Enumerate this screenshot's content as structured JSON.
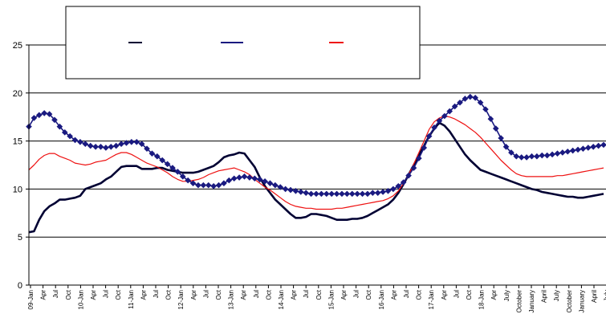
{
  "chart_data": {
    "type": "line",
    "ylim": [
      0,
      25
    ],
    "yticks": [
      0,
      5,
      10,
      15,
      20,
      25
    ],
    "grid": "horizontal",
    "legend_position": "top-center",
    "x_tick_labels": [
      "09-Jan",
      "Apr",
      "Jul",
      "Oct",
      "10-Jan",
      "Apr",
      "Jul",
      "Oct",
      "11-Jan",
      "Apr",
      "Jul",
      "Oct",
      "12-Jan",
      "Apr",
      "Jul",
      "Oct",
      "13-Jan",
      "Apr",
      "Jul",
      "Oct",
      "14-Jan",
      "Apr",
      "Jul",
      "Oct",
      "15-Jan",
      "Apr",
      "Jul",
      "Oct",
      "16-Jan",
      "Apr",
      "Jul",
      "Oct",
      "17-Jan",
      "Apr",
      "Jul",
      "Oct",
      "18-Jan",
      "Apr",
      "July",
      "October",
      "January",
      "April",
      "July",
      "October",
      "January",
      "April",
      "July"
    ],
    "series": [
      {
        "name": "",
        "color": "#000033",
        "width": 2.6,
        "marker": "none",
        "values": [
          5.5,
          5.6,
          6.8,
          7.7,
          8.2,
          8.5,
          8.9,
          8.9,
          9.0,
          9.1,
          9.3,
          10.0,
          10.2,
          10.4,
          10.6,
          11.0,
          11.3,
          11.8,
          12.3,
          12.4,
          12.4,
          12.4,
          12.1,
          12.1,
          12.1,
          12.2,
          12.2,
          12.0,
          11.9,
          11.8,
          11.7,
          11.7,
          11.7,
          11.8,
          12.0,
          12.2,
          12.4,
          12.8,
          13.3,
          13.5,
          13.6,
          13.8,
          13.7,
          13.0,
          12.3,
          11.2,
          10.3,
          9.6,
          8.9,
          8.4,
          7.9,
          7.4,
          7.0,
          7.0,
          7.1,
          7.4,
          7.4,
          7.3,
          7.2,
          7.0,
          6.8,
          6.8,
          6.8,
          6.9,
          6.9,
          7.0,
          7.2,
          7.5,
          7.8,
          8.1,
          8.4,
          8.9,
          9.6,
          10.5,
          11.5,
          12.5,
          13.5,
          14.5,
          15.5,
          16.3,
          16.9,
          16.6,
          16.0,
          15.2,
          14.4,
          13.6,
          13.0,
          12.5,
          12.0,
          11.8,
          11.6,
          11.4,
          11.2,
          11.0,
          10.8,
          10.6,
          10.4,
          10.2,
          10.0,
          9.9,
          9.7,
          9.6,
          9.5,
          9.4,
          9.3,
          9.2,
          9.2,
          9.1,
          9.1,
          9.2,
          9.3,
          9.4,
          9.5
        ]
      },
      {
        "name": "",
        "color": "#ee1111",
        "width": 1.2,
        "marker": "none",
        "values": [
          12.0,
          12.5,
          13.1,
          13.5,
          13.7,
          13.7,
          13.4,
          13.2,
          13.0,
          12.7,
          12.6,
          12.5,
          12.6,
          12.8,
          12.9,
          13.0,
          13.3,
          13.6,
          13.8,
          13.8,
          13.6,
          13.3,
          13.0,
          12.7,
          12.5,
          12.3,
          12.0,
          11.7,
          11.3,
          11.0,
          10.8,
          10.8,
          10.9,
          11.0,
          11.2,
          11.5,
          11.7,
          11.9,
          12.0,
          12.1,
          12.2,
          12.0,
          11.8,
          11.5,
          11.0,
          10.6,
          10.2,
          9.9,
          9.5,
          9.1,
          8.7,
          8.4,
          8.2,
          8.1,
          8.0,
          8.0,
          7.9,
          7.9,
          7.9,
          7.9,
          8.0,
          8.0,
          8.1,
          8.2,
          8.3,
          8.4,
          8.5,
          8.6,
          8.7,
          8.8,
          9.0,
          9.3,
          9.8,
          10.6,
          11.5,
          12.6,
          13.8,
          15.0,
          16.2,
          17.0,
          17.4,
          17.6,
          17.5,
          17.3,
          17.0,
          16.7,
          16.3,
          15.9,
          15.4,
          14.8,
          14.2,
          13.6,
          13.0,
          12.5,
          12.0,
          11.6,
          11.4,
          11.3,
          11.3,
          11.3,
          11.3,
          11.3,
          11.3,
          11.4,
          11.4,
          11.5,
          11.6,
          11.7,
          11.8,
          11.9,
          12.0,
          12.1,
          12.2
        ]
      },
      {
        "name": "",
        "color": "#1a1a80",
        "width": 1.6,
        "marker": "diamond",
        "values": [
          16.5,
          17.4,
          17.7,
          17.9,
          17.8,
          17.2,
          16.5,
          15.9,
          15.5,
          15.1,
          14.9,
          14.7,
          14.5,
          14.4,
          14.4,
          14.3,
          14.4,
          14.5,
          14.7,
          14.8,
          14.9,
          14.9,
          14.7,
          14.2,
          13.7,
          13.4,
          13.0,
          12.6,
          12.2,
          11.8,
          11.3,
          10.9,
          10.6,
          10.4,
          10.4,
          10.4,
          10.3,
          10.4,
          10.6,
          10.9,
          11.1,
          11.2,
          11.3,
          11.2,
          11.1,
          11.0,
          10.8,
          10.6,
          10.4,
          10.2,
          10.0,
          9.9,
          9.8,
          9.7,
          9.6,
          9.5,
          9.5,
          9.5,
          9.5,
          9.5,
          9.5,
          9.5,
          9.5,
          9.5,
          9.5,
          9.5,
          9.5,
          9.6,
          9.6,
          9.7,
          9.8,
          10.0,
          10.3,
          10.7,
          11.4,
          12.2,
          13.2,
          14.3,
          15.5,
          16.4,
          17.1,
          17.6,
          18.1,
          18.6,
          19.0,
          19.4,
          19.6,
          19.5,
          19.0,
          18.3,
          17.3,
          16.3,
          15.3,
          14.4,
          13.8,
          13.4,
          13.3,
          13.3,
          13.4,
          13.4,
          13.5,
          13.5,
          13.6,
          13.7,
          13.8,
          13.9,
          14.0,
          14.1,
          14.2,
          14.3,
          14.4,
          14.5,
          14.6
        ]
      }
    ]
  }
}
